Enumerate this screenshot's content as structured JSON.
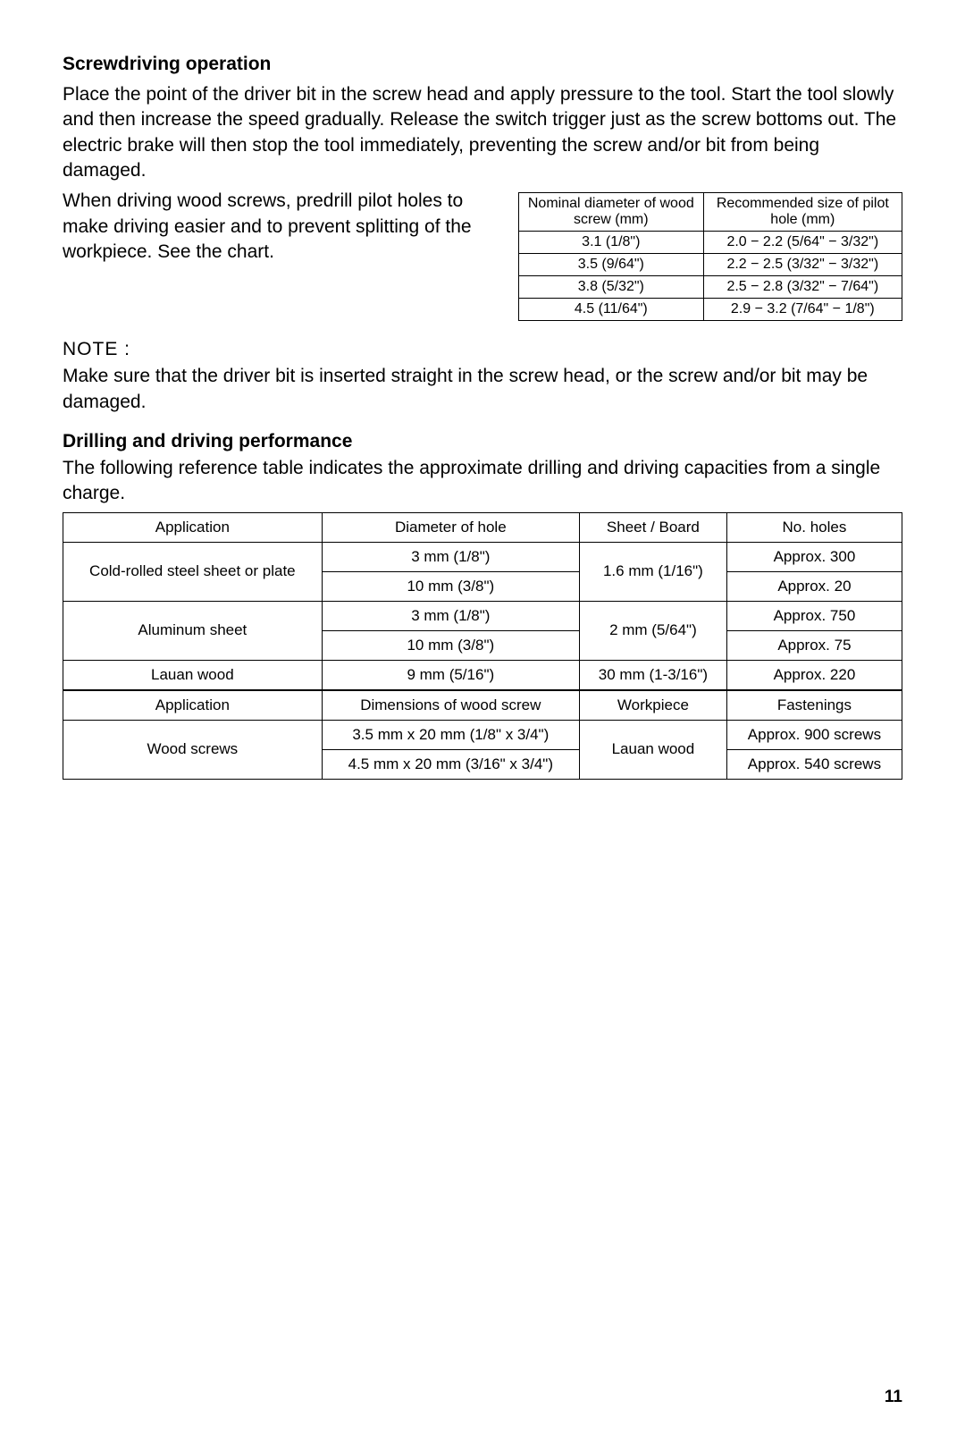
{
  "screwdriving": {
    "heading": "Screwdriving operation",
    "p1": "Place the point of the driver bit in the screw head and apply pressure to the tool. Start the tool slowly and then increase the speed gradually. Release the switch trigger just as the screw bottoms out. The electric brake will then stop the tool immediately, preventing the screw and/or bit from being damaged.",
    "p2": "When driving wood screws, predrill pilot holes to make driving easier and to prevent splitting of the workpiece. See the chart."
  },
  "pilot_table": {
    "headers": [
      "Nominal diameter of wood screw (mm)",
      "Recommended size of pilot hole (mm)"
    ],
    "rows": [
      [
        "3.1 (1/8\")",
        "2.0 − 2.2 (5/64\" − 3/32\")"
      ],
      [
        "3.5 (9/64\")",
        "2.2 − 2.5 (3/32\" − 3/32\")"
      ],
      [
        "3.8 (5/32\")",
        "2.5 − 2.8 (3/32\" − 7/64\")"
      ],
      [
        "4.5 (11/64\")",
        "2.9 − 3.2 (7/64\" − 1/8\")"
      ]
    ]
  },
  "note": {
    "heading": "NOTE :",
    "text": "Make sure that the driver bit is inserted straight in the screw head, or the screw and/or bit may be damaged."
  },
  "drilling": {
    "heading": "Drilling and driving performance",
    "text": "The following reference table indicates the approximate drilling and driving capacities from a single charge."
  },
  "main_table1": {
    "headers": [
      "Application",
      "Diameter of hole",
      "Sheet / Board",
      "No. holes"
    ],
    "r1": {
      "app": "Cold-rolled steel sheet or plate",
      "dia": "3 mm (1/8\")",
      "sheet": "1.6 mm (1/16\")",
      "holes": "Approx. 300"
    },
    "r2": {
      "dia": "10 mm (3/8\")",
      "holes": "Approx. 20"
    },
    "r3": {
      "app": "Aluminum sheet",
      "dia": "3 mm (1/8\")",
      "sheet": "2 mm (5/64\")",
      "holes": "Approx. 750"
    },
    "r4": {
      "dia": "10 mm (3/8\")",
      "holes": "Approx. 75"
    },
    "r5": {
      "app": "Lauan wood",
      "dia": "9 mm (5/16\")",
      "sheet": "30 mm (1-3/16\")",
      "holes": "Approx. 220"
    }
  },
  "main_table2": {
    "headers": [
      "Application",
      "Dimensions of wood screw",
      "Workpiece",
      "Fastenings"
    ],
    "r1": {
      "app": "Wood screws",
      "dim": "3.5 mm x 20 mm (1/8\" x 3/4\")",
      "wp": "Lauan wood",
      "fast": "Approx. 900 screws"
    },
    "r2": {
      "dim": "4.5 mm x 20 mm (3/16\" x 3/4\")",
      "fast": "Approx. 540 screws"
    }
  },
  "page": "11"
}
